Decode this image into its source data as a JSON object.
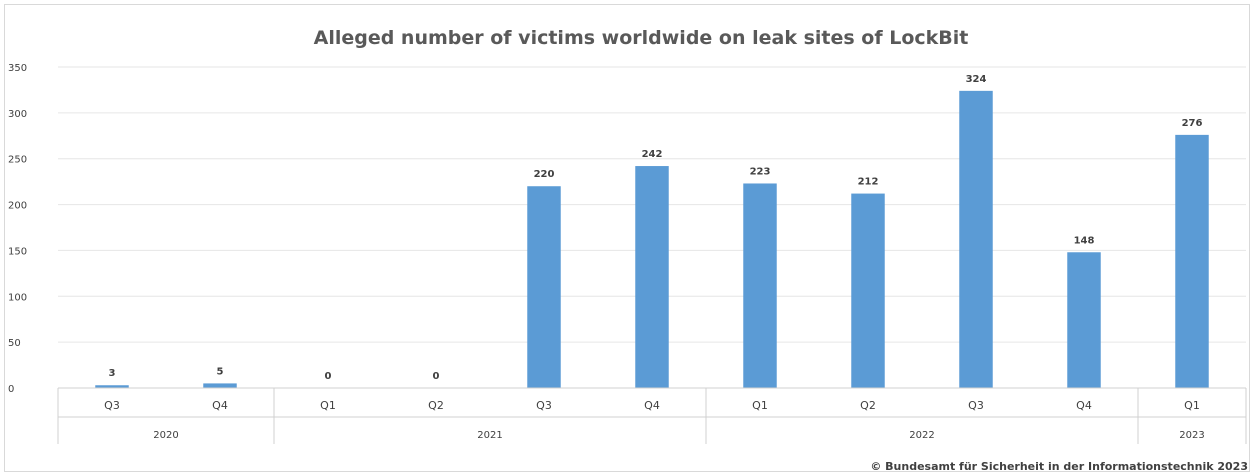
{
  "chart_data": {
    "type": "bar",
    "title": "Alleged number of victims worldwide on leak sites of LockBit",
    "xlabel": "",
    "ylabel": "",
    "ylim": [
      0,
      350
    ],
    "yticks": [
      "0",
      "50",
      "100",
      "150",
      "200",
      "250",
      "300",
      "350"
    ],
    "grid": true,
    "legend": "none",
    "categories": [
      "Q3",
      "Q4",
      "Q1",
      "Q2",
      "Q3",
      "Q4",
      "Q1",
      "Q2",
      "Q3",
      "Q4",
      "Q1"
    ],
    "groups": [
      {
        "label": "2020",
        "count": 2
      },
      {
        "label": "2021",
        "count": 4
      },
      {
        "label": "2022",
        "count": 4
      },
      {
        "label": "2023",
        "count": 1
      }
    ],
    "values": [
      3,
      5,
      0,
      0,
      220,
      242,
      223,
      212,
      324,
      148,
      276
    ],
    "data_labels": [
      "3",
      "5",
      "0",
      "0",
      "220",
      "242",
      "223",
      "212",
      "324",
      "148",
      "276"
    ],
    "colors": {
      "bar": "#5b9bd5",
      "grid": "#e6e6e6",
      "text": "#404040",
      "title": "#595959"
    }
  },
  "copyright": "© Bundesamt für Sicherheit in der Informationstechnik 2023"
}
